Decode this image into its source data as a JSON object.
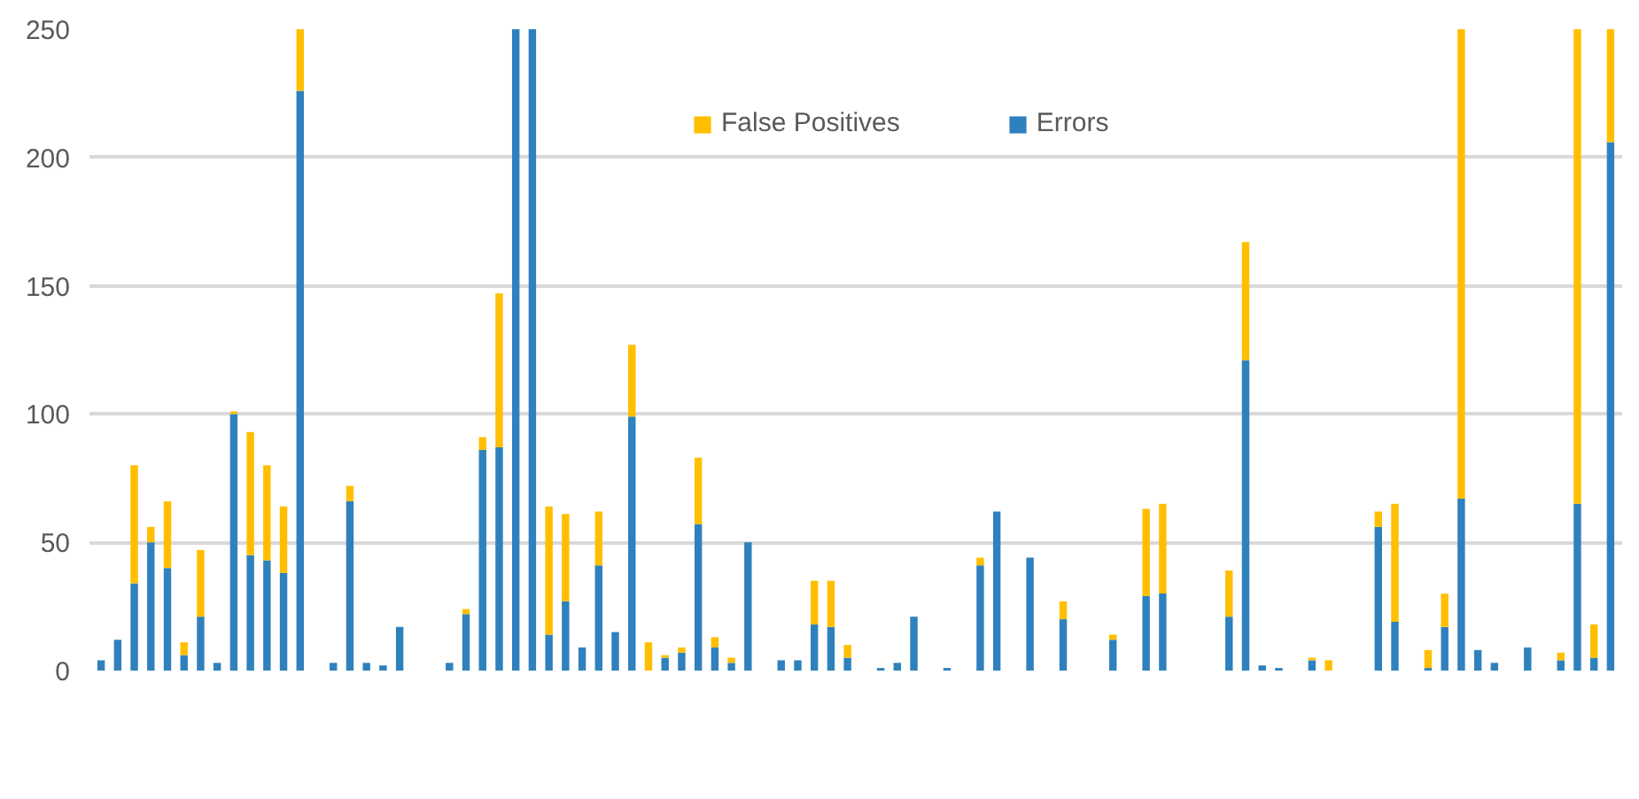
{
  "chart_data": {
    "type": "bar",
    "stacked": true,
    "categories": [
      null,
      null,
      null,
      null,
      null,
      null,
      null,
      null,
      null,
      null,
      null,
      null,
      null,
      null,
      null,
      null,
      null,
      null,
      null,
      null,
      null,
      null,
      null,
      null,
      null,
      null,
      null,
      null,
      null,
      null,
      null,
      null,
      null,
      null,
      null,
      null,
      null,
      null,
      null,
      null,
      null,
      null,
      null,
      null,
      null,
      null,
      null,
      null,
      null,
      null,
      null,
      null,
      null,
      null,
      null,
      null,
      null,
      null,
      null,
      null,
      null,
      null,
      null,
      null,
      null,
      null,
      null,
      null,
      null,
      null,
      null,
      null,
      null,
      null,
      null,
      null,
      null,
      null,
      null,
      null,
      null,
      null,
      null,
      null,
      null,
      null,
      null,
      null,
      null,
      null,
      null,
      null
    ],
    "series": [
      {
        "name": "Errors",
        "color": "#2e81bd",
        "values": [
          4,
          12,
          34,
          50,
          40,
          6,
          21,
          3,
          100,
          45,
          43,
          38,
          226,
          0,
          3,
          66,
          3,
          2,
          17,
          0,
          0,
          3,
          22,
          86,
          87,
          250,
          250,
          14,
          27,
          9,
          41,
          15,
          99,
          0,
          5,
          7,
          57,
          9,
          3,
          50,
          0,
          4,
          4,
          18,
          17,
          5,
          0,
          1,
          3,
          21,
          0,
          1,
          0,
          41,
          62,
          0,
          44,
          0,
          20,
          0,
          0,
          12,
          0,
          29,
          30,
          0,
          0,
          0,
          21,
          121,
          2,
          1,
          0,
          4,
          0,
          0,
          0,
          56,
          19,
          0,
          1,
          17,
          67,
          8,
          3,
          0,
          9,
          0,
          4,
          65,
          5,
          206
        ]
      },
      {
        "name": "False Positives",
        "color": "#ffbf00",
        "values": [
          0,
          0,
          46,
          6,
          26,
          5,
          26,
          0,
          1,
          48,
          37,
          26,
          24,
          0,
          0,
          6,
          0,
          0,
          0,
          0,
          0,
          0,
          2,
          5,
          60,
          0,
          0,
          50,
          34,
          0,
          21,
          0,
          28,
          11,
          1,
          2,
          26,
          4,
          2,
          0,
          0,
          0,
          0,
          17,
          18,
          5,
          0,
          0,
          0,
          0,
          0,
          0,
          0,
          3,
          0,
          0,
          0,
          0,
          7,
          0,
          0,
          2,
          0,
          34,
          35,
          0,
          0,
          0,
          18,
          46,
          0,
          0,
          0,
          1,
          4,
          0,
          0,
          6,
          46,
          0,
          7,
          13,
          183,
          0,
          0,
          0,
          0,
          0,
          3,
          185,
          13,
          44
        ]
      }
    ],
    "ylim": [
      0,
      250
    ],
    "yticks": [
      0,
      50,
      100,
      150,
      200,
      250
    ],
    "grid": "y",
    "legend": "top",
    "tick_labels": "y"
  }
}
